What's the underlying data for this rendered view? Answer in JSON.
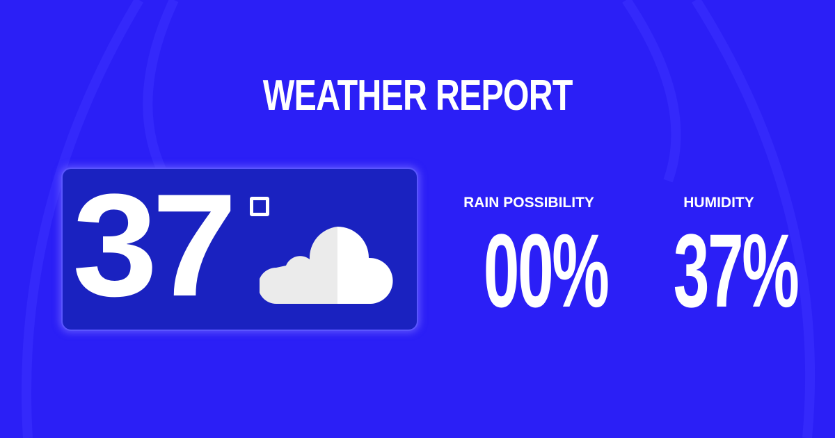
{
  "title": "WEATHER REPORT",
  "temperature": {
    "value": "37",
    "unit_icon": "degree-icon",
    "condition_icon": "cloud-icon"
  },
  "rain": {
    "label": "RAIN POSSIBILITY",
    "value": "00%"
  },
  "humidity": {
    "label": "HUMIDITY",
    "value": "37%"
  },
  "colors": {
    "background": "#2b1ff6",
    "card": "#1a22c0",
    "text": "#ffffff"
  }
}
